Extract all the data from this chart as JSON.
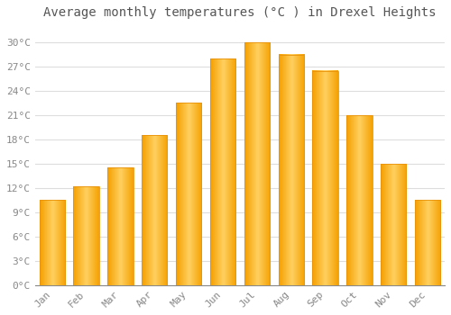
{
  "title": "Average monthly temperatures (°C ) in Drexel Heights",
  "months": [
    "Jan",
    "Feb",
    "Mar",
    "Apr",
    "May",
    "Jun",
    "Jul",
    "Aug",
    "Sep",
    "Oct",
    "Nov",
    "Dec"
  ],
  "values": [
    10.5,
    12.2,
    14.5,
    18.5,
    22.5,
    28.0,
    30.0,
    28.5,
    26.5,
    21.0,
    15.0,
    10.5
  ],
  "bar_color_face": "#FFC020",
  "bar_color_edge": "#E8920A",
  "background_color": "#FFFFFF",
  "grid_color": "#DDDDDD",
  "ytick_step": 3,
  "ylim": [
    0,
    32
  ],
  "title_fontsize": 10,
  "tick_fontsize": 8,
  "title_color": "#555555",
  "tick_color": "#888888",
  "bar_width": 0.75
}
